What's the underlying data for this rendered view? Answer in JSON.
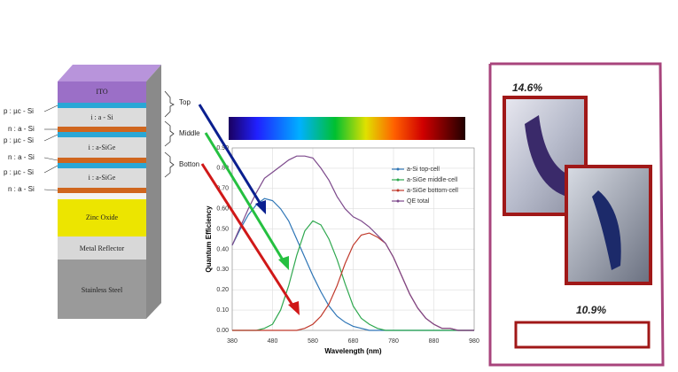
{
  "stack": {
    "layers": [
      "ITO",
      "i : a - Si",
      "i : a-SiGe",
      "i : a-SiGe",
      "Zinc Oxide",
      "Metal Reflector",
      "Stainless Steel"
    ],
    "side_labels": [
      "p : µc - Si",
      "n : a - Si",
      "p : µc - Si",
      "n : a - Si",
      "p : µc - Si",
      "n : a - Si"
    ],
    "cells": [
      "Top",
      "Middle",
      "Botton"
    ]
  },
  "photos": {
    "labels": [
      "14.6%",
      "10.9%"
    ]
  },
  "chart_data": {
    "type": "line",
    "x_label": "Wavelength (nm)",
    "y_label": "Quantum Efficiency",
    "x": [
      380,
      400,
      420,
      440,
      460,
      480,
      500,
      520,
      540,
      560,
      580,
      600,
      620,
      640,
      660,
      680,
      700,
      720,
      740,
      760,
      780,
      800,
      820,
      840,
      860,
      880,
      900,
      920,
      940,
      960,
      980
    ],
    "series": [
      {
        "name": "a-Si top-cell",
        "color": "#2e75b6",
        "values": [
          0.42,
          0.5,
          0.57,
          0.62,
          0.65,
          0.64,
          0.6,
          0.54,
          0.45,
          0.36,
          0.27,
          0.19,
          0.12,
          0.07,
          0.04,
          0.02,
          0.01,
          0,
          0,
          0,
          0,
          0,
          0,
          0,
          0,
          0,
          0,
          0,
          0,
          0,
          0
        ]
      },
      {
        "name": "a-SiGe middle-cell",
        "color": "#2fa84f",
        "values": [
          0,
          0,
          0,
          0,
          0.01,
          0.03,
          0.1,
          0.22,
          0.37,
          0.49,
          0.54,
          0.52,
          0.45,
          0.35,
          0.23,
          0.12,
          0.06,
          0.03,
          0.01,
          0,
          0,
          0,
          0,
          0,
          0,
          0,
          0,
          0,
          0,
          0,
          0
        ]
      },
      {
        "name": "a-SiGe bottom-cell",
        "color": "#c0392b",
        "values": [
          0,
          0,
          0,
          0,
          0,
          0,
          0,
          0,
          0,
          0.01,
          0.03,
          0.07,
          0.13,
          0.22,
          0.33,
          0.42,
          0.47,
          0.48,
          0.46,
          0.43,
          0.36,
          0.27,
          0.18,
          0.11,
          0.06,
          0.03,
          0.01,
          0.01,
          0,
          0,
          0
        ]
      },
      {
        "name": "QE total",
        "color": "#7d4a8c",
        "values": [
          0.42,
          0.51,
          0.6,
          0.68,
          0.75,
          0.78,
          0.81,
          0.84,
          0.86,
          0.86,
          0.85,
          0.8,
          0.74,
          0.66,
          0.6,
          0.56,
          0.54,
          0.51,
          0.47,
          0.43,
          0.36,
          0.27,
          0.18,
          0.11,
          0.06,
          0.03,
          0.01,
          0.01,
          0,
          0,
          0
        ]
      }
    ],
    "xlim": [
      380,
      980
    ],
    "xticks": [
      380,
      480,
      580,
      680,
      780,
      880,
      980
    ],
    "ylim": [
      0,
      0.9
    ],
    "yticks": [
      {
        "value": 0,
        "label": "0.00"
      },
      {
        "value": 0.1,
        "label": "0.10"
      },
      {
        "value": 0.2,
        "label": "0.20"
      },
      {
        "value": 0.3,
        "label": "0.30"
      },
      {
        "value": 0.4,
        "label": "0.40"
      },
      {
        "value": 0.5,
        "label": "0.50"
      },
      {
        "value": 0.6,
        "label": "0.60"
      },
      {
        "value": 0.7,
        "label": "0.70"
      },
      {
        "value": 0.8,
        "label": "0.80"
      },
      {
        "value": 0.9,
        "label": "0.90"
      }
    ],
    "grid": true
  }
}
